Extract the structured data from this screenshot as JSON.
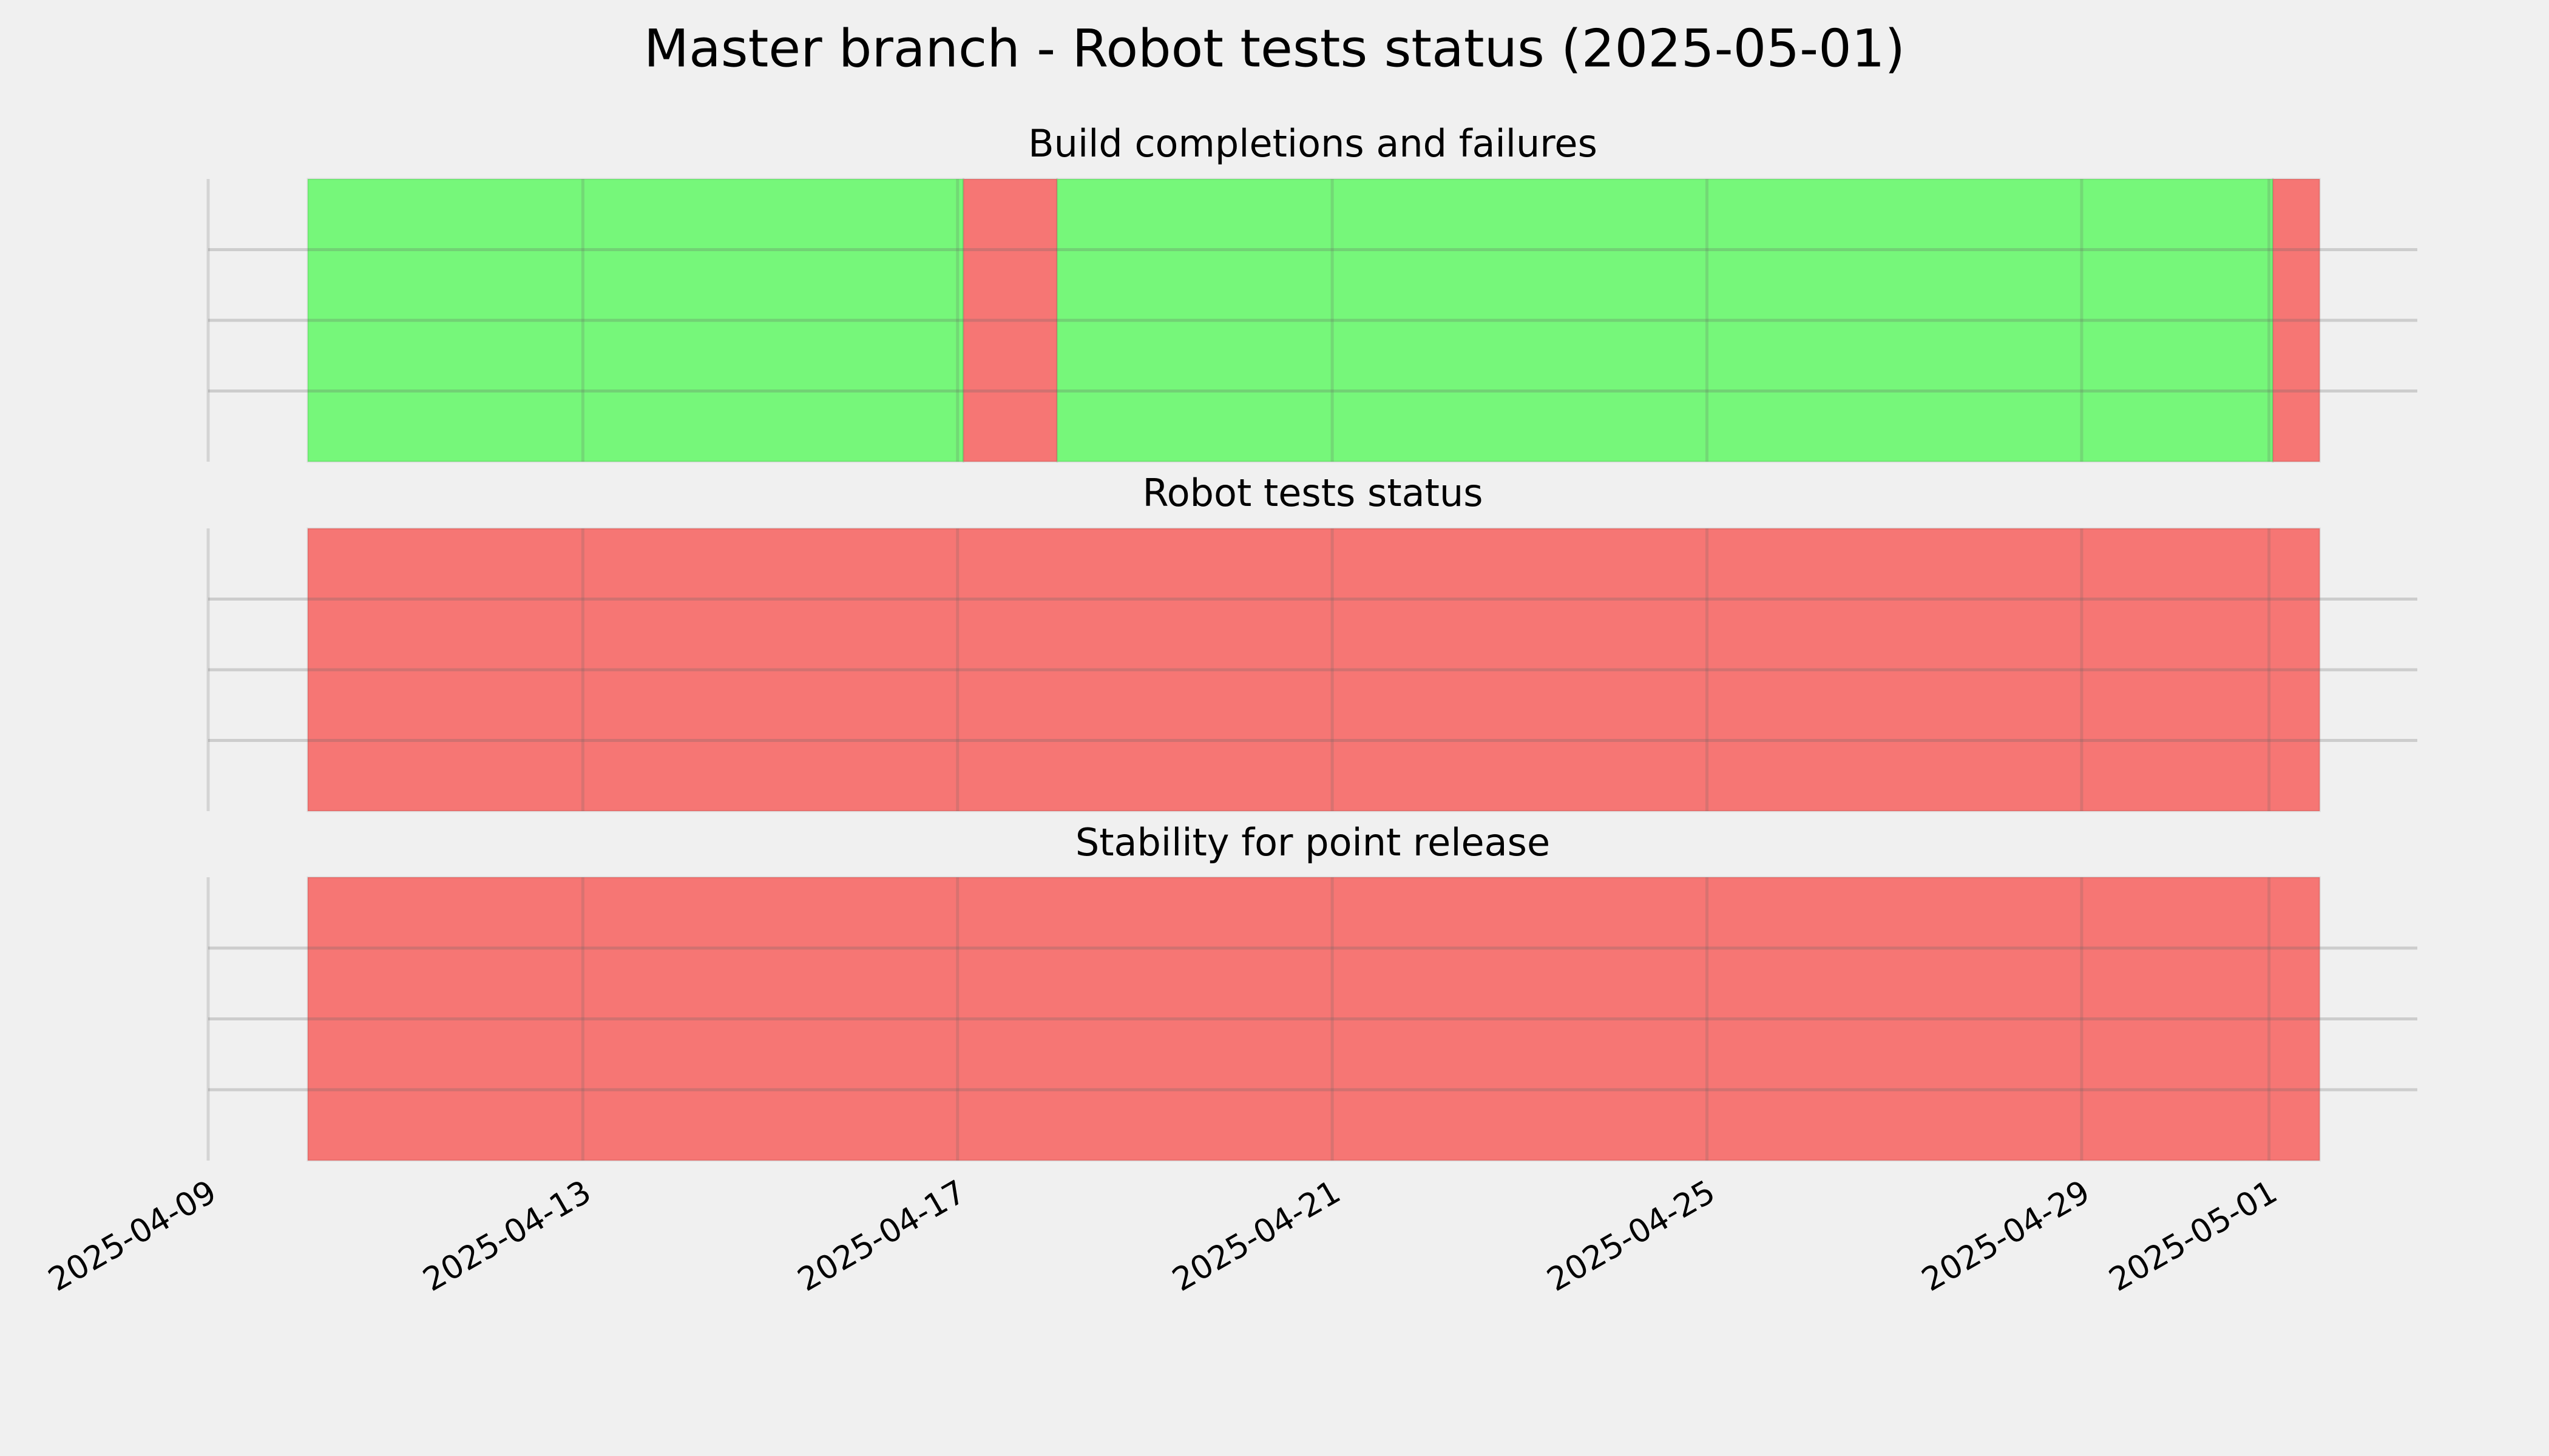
{
  "title": "Master branch - Robot tests status (2025-05-01)",
  "chart_data": [
    {
      "type": "timeline",
      "title": "Build completions and failures",
      "xlim": [
        "2025-04-09 00:00",
        "2025-05-02 14:00"
      ],
      "xticks": [
        "2025-04-09",
        "2025-04-13",
        "2025-04-17",
        "2025-04-21",
        "2025-04-25",
        "2025-04-29",
        "2025-05-01"
      ],
      "ylim": [
        0,
        1
      ],
      "yticks": [
        0.25,
        0.5,
        0.75
      ],
      "grid": true,
      "segments": [
        {
          "start": "2025-04-10 01:30",
          "end": "2025-04-17 01:30",
          "color": "#76f77a"
        },
        {
          "start": "2025-04-17 01:30",
          "end": "2025-04-18 01:30",
          "color": "#f67674"
        },
        {
          "start": "2025-04-18 01:30",
          "end": "2025-05-01 01:00",
          "color": "#76f77a"
        },
        {
          "start": "2025-05-01 01:00",
          "end": "2025-05-01 13:00",
          "color": "#f67674"
        }
      ]
    },
    {
      "type": "timeline",
      "title": "Robot tests status",
      "xlim": [
        "2025-04-09 00:00",
        "2025-05-02 14:00"
      ],
      "xticks": [
        "2025-04-09",
        "2025-04-13",
        "2025-04-17",
        "2025-04-21",
        "2025-04-25",
        "2025-04-29",
        "2025-05-01"
      ],
      "ylim": [
        0,
        1
      ],
      "yticks": [
        0.25,
        0.5,
        0.75
      ],
      "grid": true,
      "segments": [
        {
          "start": "2025-04-10 01:30",
          "end": "2025-05-01 13:00",
          "color": "#f67674"
        }
      ]
    },
    {
      "type": "timeline",
      "title": "Stability for point release",
      "xlim": [
        "2025-04-09 00:00",
        "2025-05-02 14:00"
      ],
      "xticks": [
        "2025-04-09",
        "2025-04-13",
        "2025-04-17",
        "2025-04-21",
        "2025-04-25",
        "2025-04-29",
        "2025-05-01"
      ],
      "ylim": [
        0,
        1
      ],
      "yticks": [
        0.25,
        0.5,
        0.75
      ],
      "grid": true,
      "segments": [
        {
          "start": "2025-04-10 01:30",
          "end": "2025-05-01 13:00",
          "color": "#f67674"
        }
      ]
    }
  ]
}
